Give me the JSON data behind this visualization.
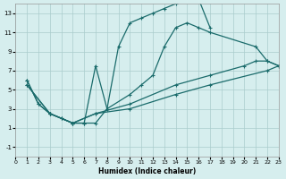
{
  "xlabel": "Humidex (Indice chaleur)",
  "bg_color": "#d6eeee",
  "line_color": "#1a6b6b",
  "grid_color": "#aacccc",
  "curve1_x": [
    1,
    2,
    3,
    4,
    5,
    6,
    7,
    8,
    9,
    10,
    11,
    12,
    13,
    14,
    15,
    16,
    17
  ],
  "curve1_y": [
    6,
    3.5,
    2.5,
    2.0,
    1.5,
    1.5,
    1.5,
    3.0,
    9.5,
    12.0,
    12.5,
    13.0,
    13.5,
    14.0,
    14.5,
    14.5,
    11.5
  ],
  "curve2_x": [
    1,
    2,
    3,
    4,
    5,
    6,
    7,
    8,
    10,
    11,
    12,
    13,
    14,
    15,
    16,
    17,
    21,
    22,
    23
  ],
  "curve2_y": [
    6,
    3.5,
    2.5,
    2.0,
    1.5,
    1.5,
    7.5,
    3.0,
    4.5,
    5.5,
    6.5,
    9.5,
    11.5,
    12.0,
    11.5,
    11.0,
    9.5,
    8.0,
    7.5
  ],
  "curve3_x": [
    1,
    3,
    5,
    7,
    10,
    14,
    17,
    20,
    21,
    22,
    23
  ],
  "curve3_y": [
    5.5,
    2.5,
    1.5,
    2.5,
    3.5,
    5.5,
    6.5,
    7.5,
    8.0,
    8.0,
    7.5
  ],
  "curve4_x": [
    1,
    3,
    5,
    7,
    10,
    14,
    17,
    22,
    23
  ],
  "curve4_y": [
    5.5,
    2.5,
    1.5,
    2.5,
    3.0,
    4.5,
    5.5,
    7.0,
    7.5
  ],
  "xlim": [
    0,
    23
  ],
  "ylim": [
    -2,
    14
  ],
  "xticks": [
    0,
    1,
    2,
    3,
    4,
    5,
    6,
    7,
    8,
    9,
    10,
    11,
    12,
    13,
    14,
    15,
    16,
    17,
    18,
    19,
    20,
    21,
    22,
    23
  ],
  "yticks": [
    -1,
    1,
    3,
    5,
    7,
    9,
    11,
    13
  ]
}
